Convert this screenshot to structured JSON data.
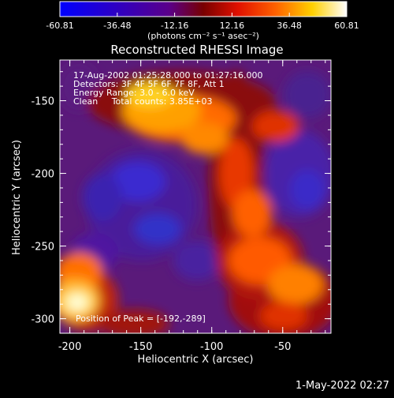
{
  "chart_data": {
    "type": "heatmap",
    "title": "Reconstructed RHESSI Image",
    "colorbar": {
      "ticks": [
        "-60.81",
        "-36.48",
        "-12.16",
        "12.16",
        "36.48",
        "60.81"
      ],
      "range": [
        -60.81,
        60.81
      ],
      "unit_label": "(photons cm⁻² s⁻¹ asec⁻²)"
    },
    "annotations": [
      "17-Aug-2002 01:25:28.000 to 01:27:16.000",
      "Detectors: 3F 4F 5F 6F 7F 8F, Att 1",
      "Energy Range: 3.0 - 6.0 keV",
      "Clean     Total counts: 3.85E+03"
    ],
    "peak_label": "Position of Peak = [-192,-289]",
    "xlabel": "Heliocentric X (arcsec)",
    "ylabel": "Heliocentric Y (arcsec)",
    "x_ticks": [
      "-200",
      "-150",
      "-100",
      "-50"
    ],
    "y_ticks": [
      "-150",
      "-200",
      "-250",
      "-300"
    ],
    "xlim": [
      -207,
      -16
    ],
    "ylim": [
      -310,
      -122
    ],
    "peak": [
      -192,
      -289
    ]
  },
  "footer_date": "1-May-2022 02:27"
}
